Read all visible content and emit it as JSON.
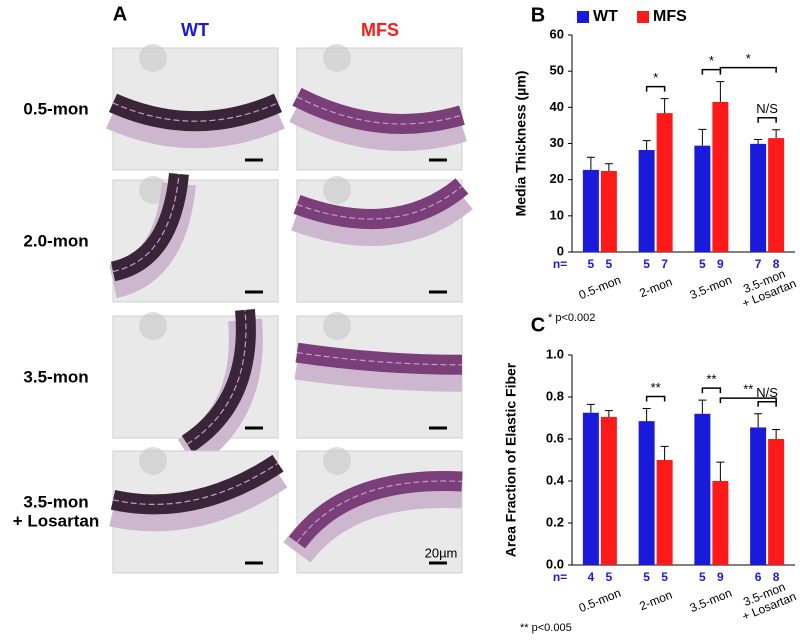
{
  "panel_a": {
    "label": "A",
    "columns": [
      "WT",
      "MFS"
    ],
    "rows": [
      "0.5-mon",
      "2.0-mon",
      "3.5-mon",
      "3.5-mon\n+ Losartan"
    ],
    "scale_bar": "20µm"
  },
  "chart_data": [
    {
      "type": "bar",
      "panel_label": "B",
      "ylabel": "Media Thickness (µm)",
      "categories": [
        "0.5-mon",
        "2-mon",
        "3.5-mon",
        "3.5-mon\n+ Losartan"
      ],
      "series": [
        {
          "name": "WT",
          "color": "#1a1adb",
          "values": [
            22.7,
            28.2,
            29.4,
            29.9
          ],
          "errors": [
            3.5,
            2.6,
            4.5,
            1.2
          ],
          "n": [
            5,
            5,
            5,
            7
          ]
        },
        {
          "name": "MFS",
          "color": "#ff1a1a",
          "values": [
            22.4,
            38.4,
            41.5,
            31.5
          ],
          "errors": [
            2.0,
            4.0,
            5.6,
            2.3
          ],
          "n": [
            5,
            7,
            9,
            8
          ]
        }
      ],
      "n_label": "n=",
      "ylim": [
        0,
        60
      ],
      "yticks": [
        0,
        10,
        20,
        30,
        40,
        50,
        60
      ],
      "legend": "top-left",
      "significance": [
        {
          "label": "*",
          "bars": [
            [
              1,
              0
            ],
            [
              1,
              1
            ]
          ]
        },
        {
          "label": "*",
          "bars": [
            [
              2,
              0
            ],
            [
              2,
              1
            ]
          ]
        },
        {
          "label": "*",
          "bars": [
            [
              2,
              1
            ],
            [
              3,
              1
            ]
          ]
        },
        {
          "label": "N/S",
          "bars": [
            [
              3,
              0
            ],
            [
              3,
              1
            ]
          ]
        }
      ],
      "footnote": "* p<0.002"
    },
    {
      "type": "bar",
      "panel_label": "C",
      "ylabel": "Area Fraction of Elastic Fiber",
      "categories": [
        "0.5-mon",
        "2-mon",
        "3.5-mon",
        "3.5-mon\n+ Losartan"
      ],
      "series": [
        {
          "name": "WT",
          "color": "#1a1adb",
          "values": [
            0.725,
            0.685,
            0.72,
            0.655
          ],
          "errors": [
            0.04,
            0.06,
            0.065,
            0.065
          ],
          "n": [
            4,
            5,
            5,
            6
          ]
        },
        {
          "name": "MFS",
          "color": "#ff1a1a",
          "values": [
            0.705,
            0.5,
            0.4,
            0.6
          ],
          "errors": [
            0.03,
            0.065,
            0.09,
            0.045
          ],
          "n": [
            5,
            5,
            9,
            8
          ]
        }
      ],
      "n_label": "n=",
      "ylim": [
        0,
        1
      ],
      "yticks": [
        {
          "value": 0,
          "label": "0.0"
        },
        0.2,
        0.4,
        0.6,
        0.8,
        {
          "value": 1,
          "label": "1.0"
        }
      ],
      "significance": [
        {
          "label": "**",
          "bars": [
            [
              1,
              0
            ],
            [
              1,
              1
            ]
          ]
        },
        {
          "label": "**",
          "bars": [
            [
              2,
              0
            ],
            [
              2,
              1
            ]
          ]
        },
        {
          "label": "**",
          "bars": [
            [
              2,
              1
            ],
            [
              3,
              1
            ]
          ]
        },
        {
          "label": "N/S",
          "bars": [
            [
              3,
              0
            ],
            [
              3,
              1
            ]
          ]
        }
      ],
      "footnote": "** p<0.005"
    }
  ]
}
